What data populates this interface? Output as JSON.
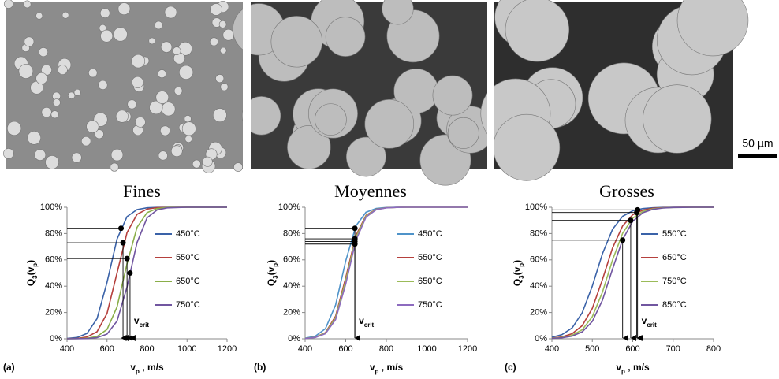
{
  "scale_bar": "50 µm",
  "chart_data": [
    {
      "type": "line",
      "title": "Fines",
      "panel_label": "(a)",
      "ylabel": [
        "Q",
        "3",
        "(v",
        "p",
        ")"
      ],
      "xlabel": [
        "v",
        "p",
        " , m/s"
      ],
      "crit_label": [
        "v",
        "crit"
      ],
      "xlim": [
        400,
        1200
      ],
      "xticks": [
        400,
        600,
        800,
        1000,
        1200
      ],
      "ylim": [
        0,
        100
      ],
      "yticks": [
        {
          "value": 0,
          "label": "0%"
        },
        {
          "value": 20,
          "label": "20%"
        },
        {
          "value": 40,
          "label": "40%"
        },
        {
          "value": 60,
          "label": "60%"
        },
        {
          "value": 80,
          "label": "80%"
        },
        {
          "value": 100,
          "label": "100%"
        }
      ],
      "grid": false,
      "x": [
        400,
        450,
        500,
        550,
        600,
        650,
        700,
        750,
        800,
        850,
        900,
        1000,
        1200
      ],
      "series": [
        {
          "name": "450°C",
          "color": "#3a62a8",
          "values": [
            0.25,
            1.0,
            4.1,
            15.3,
            42.9,
            75.8,
            92.9,
            98.2,
            99.6,
            99.9,
            100,
            100,
            100
          ]
        },
        {
          "name": "550°C",
          "color": "#b5403d",
          "values": [
            0.1,
            0.3,
            1.4,
            5.4,
            19.3,
            50,
            80.7,
            94.6,
            98.6,
            99.7,
            99.9,
            100,
            100
          ]
        },
        {
          "name": "650°C",
          "color": "#8aae49",
          "values": [
            0,
            0.1,
            0.4,
            1.8,
            7.1,
            24.2,
            57.1,
            84.7,
            95.9,
            99.0,
            99.8,
            100,
            100
          ]
        },
        {
          "name": "750°C",
          "color": "#7156a0",
          "values": [
            0,
            0.1,
            0.2,
            0.9,
            3.6,
            13.5,
            39.4,
            73.1,
            91.9,
            97.9,
            99.5,
            100,
            100
          ]
        }
      ],
      "crit_points": [
        {
          "x": 670,
          "y": 84
        },
        {
          "x": 680,
          "y": 73
        },
        {
          "x": 700,
          "y": 61
        },
        {
          "x": 715,
          "y": 50
        }
      ]
    },
    {
      "type": "line",
      "title": "Moyennes",
      "panel_label": "(b)",
      "ylabel": [
        "Q",
        "3",
        "(v",
        "p",
        ")"
      ],
      "xlabel": [
        "v",
        "p",
        " , m/s"
      ],
      "crit_label": [
        "v",
        "crit"
      ],
      "xlim": [
        400,
        1200
      ],
      "xticks": [
        400,
        600,
        800,
        1000,
        1200
      ],
      "ylim": [
        0,
        100
      ],
      "yticks": [
        {
          "value": 0,
          "label": "0%"
        },
        {
          "value": 20,
          "label": "20%"
        },
        {
          "value": 40,
          "label": "40%"
        },
        {
          "value": 60,
          "label": "60%"
        },
        {
          "value": 80,
          "label": "80%"
        },
        {
          "value": 100,
          "label": "100%"
        }
      ],
      "grid": false,
      "x": [
        400,
        450,
        500,
        550,
        600,
        650,
        700,
        750,
        800,
        850,
        900,
        1000,
        1200
      ],
      "series": [
        {
          "name": "450°C",
          "color": "#4f93c9",
          "values": [
            0.5,
            2.0,
            7.7,
            25.7,
            59.2,
            85.8,
            96.2,
            99.1,
            99.8,
            100,
            100,
            100,
            100
          ]
        },
        {
          "name": "550°C",
          "color": "#b5403d",
          "values": [
            0.3,
            1.2,
            4.7,
            17.2,
            46.4,
            78.4,
            93.8,
            98.4,
            99.6,
            99.9,
            100,
            100,
            100
          ]
        },
        {
          "name": "650°C",
          "color": "#9bbb59",
          "values": [
            0.3,
            1.1,
            4.4,
            16.0,
            44.3,
            76.9,
            93.3,
            98.3,
            99.6,
            99.9,
            100,
            100,
            100
          ]
        },
        {
          "name": "750°C",
          "color": "#8d6bbf",
          "values": [
            0.2,
            1.0,
            3.9,
            14.6,
            41.6,
            74.8,
            92.5,
            98.1,
            99.5,
            99.9,
            100,
            100,
            100
          ]
        }
      ],
      "crit_points": [
        {
          "x": 645,
          "y": 84
        },
        {
          "x": 645,
          "y": 76
        },
        {
          "x": 645,
          "y": 74
        },
        {
          "x": 645,
          "y": 72
        }
      ]
    },
    {
      "type": "line",
      "title": "Grosses",
      "panel_label": "(c)",
      "ylabel": [
        "Q",
        "3",
        "(v",
        "p",
        ")"
      ],
      "xlabel": [
        "v",
        "p",
        " , m/s"
      ],
      "crit_label": [
        "v",
        "crit"
      ],
      "xlim": [
        400,
        800
      ],
      "xticks": [
        400,
        500,
        600,
        700,
        800
      ],
      "ylim": [
        0,
        100
      ],
      "yticks": [
        {
          "value": 0,
          "label": "0%"
        },
        {
          "value": 20,
          "label": "20%"
        },
        {
          "value": 40,
          "label": "40%"
        },
        {
          "value": 60,
          "label": "60%"
        },
        {
          "value": 80,
          "label": "80%"
        },
        {
          "value": 100,
          "label": "100%"
        }
      ],
      "grid": false,
      "x": [
        400,
        425,
        450,
        475,
        500,
        525,
        550,
        575,
        600,
        625,
        650,
        675,
        700,
        725,
        750,
        775,
        800
      ],
      "series": [
        {
          "name": "550°C",
          "color": "#3a62a8",
          "values": [
            1.2,
            3.2,
            8.3,
            19.8,
            40.1,
            64.6,
            83.2,
            93.1,
            97.3,
            99.0,
            99.6,
            99.9,
            100,
            100,
            100,
            100,
            100
          ]
        },
        {
          "name": "650°C",
          "color": "#b5403d",
          "values": [
            0.5,
            1.5,
            3.9,
            10.0,
            23.1,
            45.0,
            69.0,
            85.8,
            94.3,
            97.8,
            99.2,
            99.7,
            99.9,
            100,
            100,
            100,
            100
          ]
        },
        {
          "name": "750°C",
          "color": "#9bbb59",
          "values": [
            0.4,
            1.0,
            2.7,
            6.9,
            16.8,
            35.4,
            59.9,
            80.2,
            91.7,
            96.8,
            98.8,
            99.5,
            99.8,
            99.9,
            100,
            100,
            100
          ]
        },
        {
          "name": "850°C",
          "color": "#7156a0",
          "values": [
            0.3,
            0.8,
            2.0,
            5.3,
            13.2,
            29.3,
            53.0,
            75.4,
            89.3,
            95.8,
            98.4,
            99.4,
            99.8,
            99.9,
            100,
            100,
            100
          ]
        }
      ],
      "crit_points": [
        {
          "x": 612,
          "y": 98
        },
        {
          "x": 610,
          "y": 96
        },
        {
          "x": 595,
          "y": 90
        },
        {
          "x": 575,
          "y": 75
        }
      ]
    }
  ]
}
